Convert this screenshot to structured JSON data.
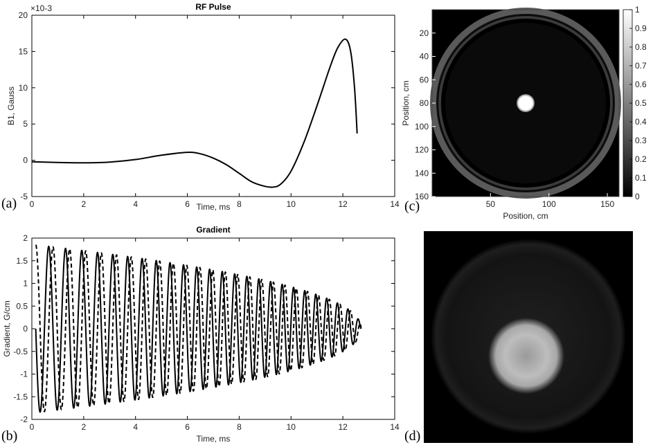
{
  "panel_labels": {
    "a": "(a)",
    "b": "(b)",
    "c": "(c)",
    "d": "(d)"
  },
  "chart_data": [
    {
      "type": "line",
      "panel": "a",
      "title": "RF Pulse",
      "xlabel": "Time, ms",
      "ylabel": "B1, Gauss",
      "y_multiplier": "×10-3",
      "xlim": [
        0,
        14
      ],
      "ylim": [
        -5,
        20
      ],
      "xticks": [
        "0",
        "2",
        "4",
        "6",
        "8",
        "10",
        "12",
        "14"
      ],
      "yticks": [
        "-5",
        "0",
        "5",
        "10",
        "15",
        "20"
      ],
      "series": [
        {
          "color": "#000000",
          "x": [
            0,
            1,
            2,
            3,
            4,
            5,
            6,
            6.5,
            7,
            7.5,
            8,
            8.5,
            9,
            9.3,
            9.6,
            10,
            10.5,
            11,
            11.5,
            11.8,
            12.1,
            12.3,
            12.45,
            12.55
          ],
          "y": [
            -0.2,
            -0.3,
            -0.35,
            -0.25,
            0.1,
            0.7,
            1.1,
            0.9,
            0.3,
            -0.6,
            -1.8,
            -3.0,
            -3.6,
            -3.7,
            -3.3,
            -1.5,
            2.5,
            7.5,
            12.8,
            15.5,
            16.7,
            15.0,
            10.0,
            3.7
          ]
        }
      ]
    },
    {
      "type": "line",
      "panel": "b",
      "title": "Gradient",
      "xlabel": "Time, ms",
      "ylabel": "Gradient, G/cm",
      "xlim": [
        0,
        14
      ],
      "ylim": [
        -2,
        2
      ],
      "xticks": [
        "0",
        "2",
        "4",
        "6",
        "8",
        "10",
        "12",
        "14"
      ],
      "yticks": [
        "-2",
        "-1.5",
        "-1",
        "-0.5",
        "0",
        "0.5",
        "1",
        "1.5",
        "2"
      ],
      "series": [
        {
          "style": "solid",
          "color": "#000000",
          "amplitude_start": 1.85,
          "amplitude_end": 0.0,
          "t_end": 12.55,
          "cycles": 25,
          "phase": "sine"
        },
        {
          "style": "dashed",
          "color": "#000000",
          "amplitude_start": 1.85,
          "amplitude_end": 0.0,
          "t_end": 12.55,
          "cycles": 25,
          "phase": "cosine"
        }
      ]
    },
    {
      "type": "heatmap",
      "panel": "c",
      "xlabel": "Position, cm",
      "ylabel": "Position, cm",
      "xlim": [
        0,
        160
      ],
      "ylim": [
        0,
        160
      ],
      "xticks": [
        "50",
        "100",
        "150"
      ],
      "yticks": [
        "20",
        "40",
        "60",
        "80",
        "100",
        "120",
        "140",
        "160"
      ],
      "colorbar": {
        "min": 0,
        "max": 1,
        "ticks": [
          "0",
          "0.1",
          "0.2",
          "0.3",
          "0.4",
          "0.5",
          "0.6",
          "0.7",
          "0.8",
          "0.9",
          "1"
        ]
      },
      "target": {
        "center_x": 80,
        "center_y": 80,
        "radius": 7,
        "value": 1
      },
      "ring": {
        "center_x": 80,
        "center_y": 80,
        "radius": 80,
        "value": 0.45
      }
    }
  ],
  "image_d": {
    "description_colors": {
      "background": "#000000",
      "blob": "#cfcfcf"
    }
  }
}
